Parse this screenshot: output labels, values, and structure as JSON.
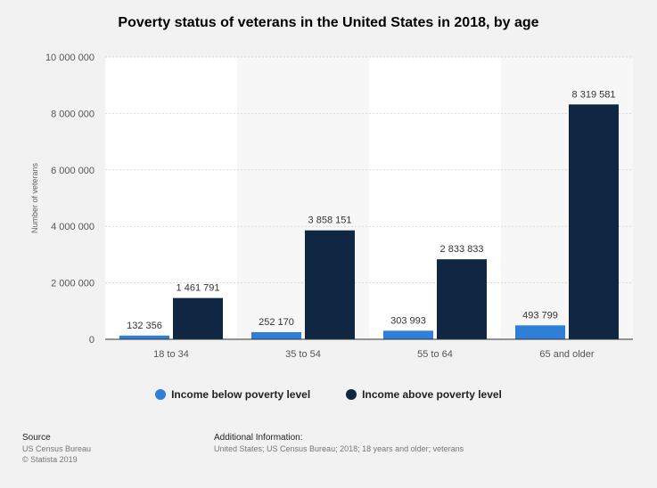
{
  "chart_data": {
    "type": "bar",
    "title": "Poverty status of veterans in the United States in 2018, by age",
    "xlabel": "",
    "ylabel": "Number of veterans",
    "ylim": [
      0,
      10000000
    ],
    "yticks": [
      0,
      2000000,
      4000000,
      6000000,
      8000000,
      10000000
    ],
    "ytick_labels": [
      "0",
      "2 000 000",
      "4 000 000",
      "6 000 000",
      "8 000 000",
      "10 000 000"
    ],
    "categories": [
      "18 to 34",
      "35 to 54",
      "55 to 64",
      "65 and older"
    ],
    "series": [
      {
        "name": "Income below poverty level",
        "color": "#2f7ed8",
        "values": [
          132356,
          252170,
          303993,
          493799
        ],
        "labels": [
          "132 356",
          "252 170",
          "303 993",
          "493 799"
        ]
      },
      {
        "name": "Income above poverty level",
        "color": "#0f2742",
        "values": [
          1461791,
          3858151,
          2833833,
          8319581
        ],
        "labels": [
          "1 461 791",
          "3 858 151",
          "2 833 833",
          "8 319 581"
        ]
      }
    ],
    "legend": "bottom"
  },
  "footer": {
    "source_heading": "Source",
    "source_line1": "US Census Bureau",
    "source_line2": "© Statista 2019",
    "info_heading": "Additional Information:",
    "info_text": "United States; US Census Bureau; 2018; 18 years and older; veterans"
  }
}
